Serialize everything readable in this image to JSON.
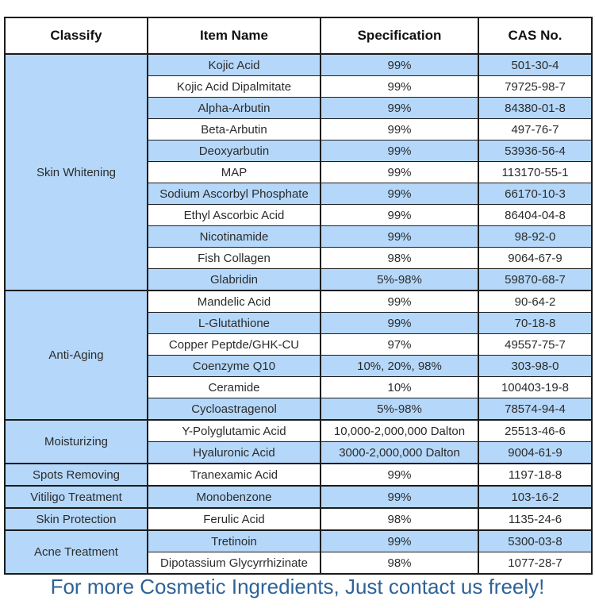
{
  "table": {
    "headers": [
      "Classify",
      "Item Name",
      "Specification",
      "CAS No."
    ],
    "sections": [
      {
        "classify": "Skin Whitening",
        "rows": [
          {
            "item": "Kojic Acid",
            "spec": "99%",
            "cas": "501-30-4"
          },
          {
            "item": "Kojic Acid Dipalmitate",
            "spec": "99%",
            "cas": "79725-98-7"
          },
          {
            "item": "Alpha-Arbutin",
            "spec": "99%",
            "cas": "84380-01-8"
          },
          {
            "item": "Beta-Arbutin",
            "spec": "99%",
            "cas": "497-76-7"
          },
          {
            "item": "Deoxyarbutin",
            "spec": "99%",
            "cas": "53936-56-4"
          },
          {
            "item": "MAP",
            "spec": "99%",
            "cas": "113170-55-1"
          },
          {
            "item": "Sodium Ascorbyl Phosphate",
            "spec": "99%",
            "cas": "66170-10-3"
          },
          {
            "item": "Ethyl Ascorbic Acid",
            "spec": "99%",
            "cas": "86404-04-8"
          },
          {
            "item": "Nicotinamide",
            "spec": "99%",
            "cas": "98-92-0"
          },
          {
            "item": "Fish Collagen",
            "spec": "98%",
            "cas": "9064-67-9"
          },
          {
            "item": "Glabridin",
            "spec": "5%-98%",
            "cas": "59870-68-7"
          }
        ]
      },
      {
        "classify": "Anti-Aging",
        "rows": [
          {
            "item": "Mandelic Acid",
            "spec": "99%",
            "cas": "90-64-2"
          },
          {
            "item": "L-Glutathione",
            "spec": "99%",
            "cas": "70-18-8"
          },
          {
            "item": "Copper Peptde/GHK-CU",
            "spec": "97%",
            "cas": "49557-75-7"
          },
          {
            "item": "Coenzyme Q10",
            "spec": "10%, 20%, 98%",
            "cas": "303-98-0"
          },
          {
            "item": "Ceramide",
            "spec": "10%",
            "cas": "100403-19-8"
          },
          {
            "item": "Cycloastragenol",
            "spec": "5%-98%",
            "cas": "78574-94-4"
          }
        ]
      },
      {
        "classify": "Moisturizing",
        "rows": [
          {
            "item": "Y-Polyglutamic Acid",
            "spec": "10,000-2,000,000 Dalton",
            "cas": "25513-46-6"
          },
          {
            "item": "Hyaluronic Acid",
            "spec": "3000-2,000,000 Dalton",
            "cas": "9004-61-9"
          }
        ]
      },
      {
        "classify": "Spots Removing",
        "rows": [
          {
            "item": "Tranexamic Acid",
            "spec": "99%",
            "cas": "1197-18-8"
          }
        ]
      },
      {
        "classify": "Vitiligo Treatment",
        "rows": [
          {
            "item": "Monobenzone",
            "spec": "99%",
            "cas": "103-16-2"
          }
        ]
      },
      {
        "classify": "Skin Protection",
        "rows": [
          {
            "item": "Ferulic Acid",
            "spec": "98%",
            "cas": "1135-24-6"
          }
        ]
      },
      {
        "classify": "Acne Treatment",
        "rows": [
          {
            "item": "Tretinoin",
            "spec": "99%",
            "cas": "5300-03-8"
          },
          {
            "item": "Dipotassium Glycyrrhizinate",
            "spec": "98%",
            "cas": "1077-28-7"
          }
        ]
      }
    ]
  },
  "footer": {
    "text": "For more Cosmetic Ingredients, Just contact us freely!"
  },
  "colors": {
    "row_blue": "#B5D8FA",
    "row_white": "#FFFFFF",
    "border": "#1C1C1C",
    "header_text": "#111111",
    "cell_text": "#2B2B2B",
    "footer_text": "#2D6399"
  }
}
